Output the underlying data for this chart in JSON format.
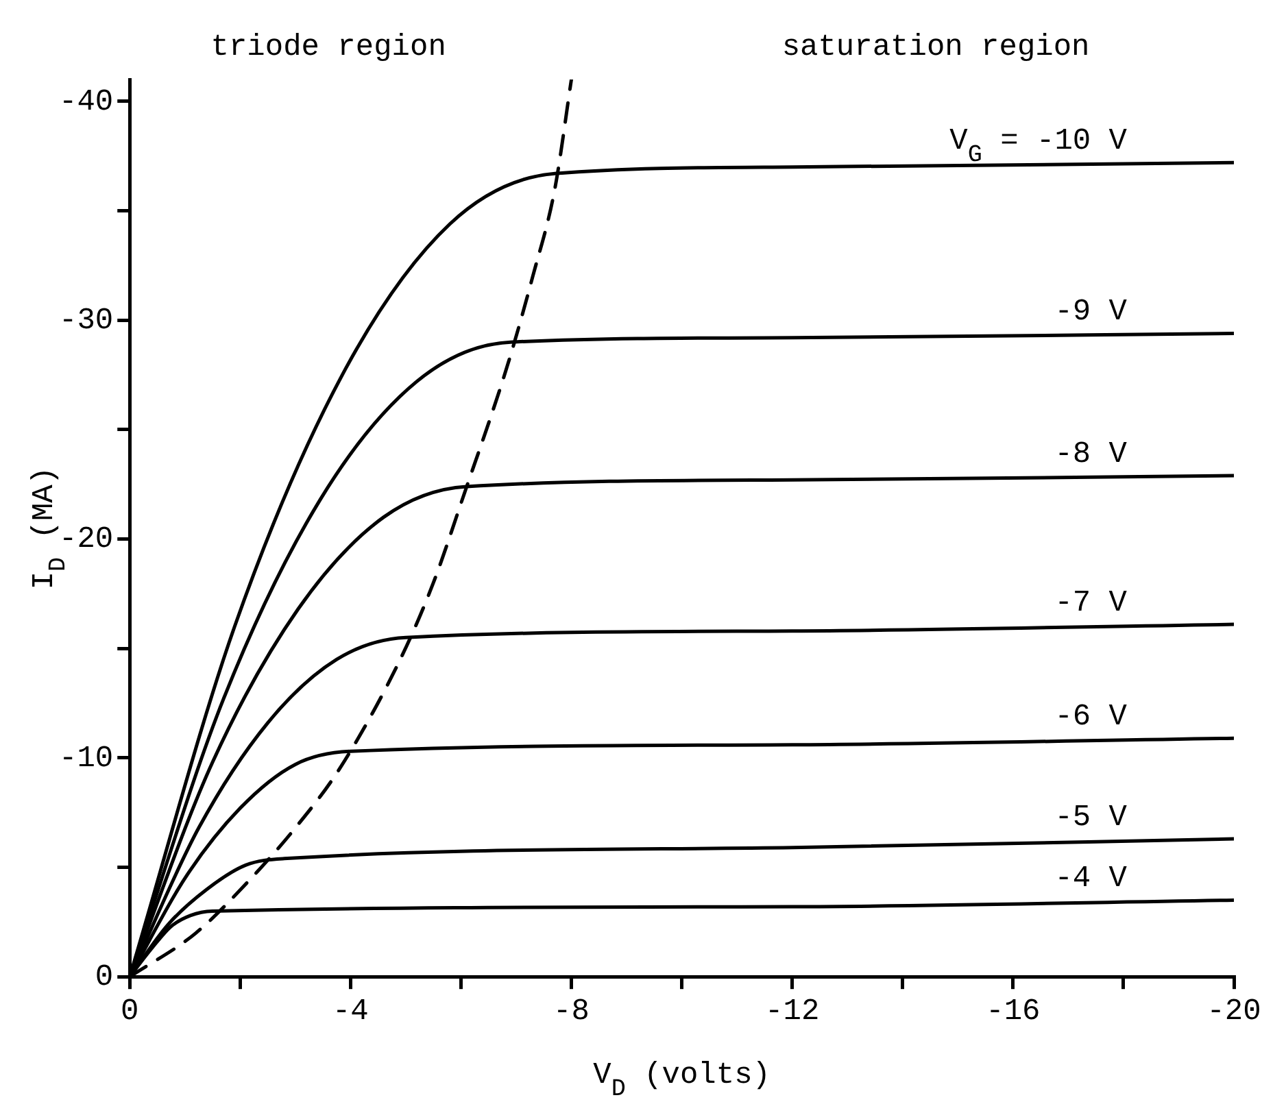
{
  "chart_data": {
    "type": "line",
    "xlabel": "V$_{D}$ (volts)",
    "ylabel": "I$_{D}$ (MA)",
    "annotations": [
      "triode region",
      "saturation region"
    ],
    "xlim": [
      0,
      -20
    ],
    "ylim": [
      0,
      -41
    ],
    "xticks": [
      0,
      {
        "value": -2,
        "label": null
      },
      -4,
      {
        "value": -6,
        "label": null
      },
      -8,
      {
        "value": -10,
        "label": null
      },
      -12,
      {
        "value": -14,
        "label": null
      },
      -16,
      {
        "value": -18,
        "label": null
      },
      -20
    ],
    "yticks": [
      0,
      {
        "value": -5,
        "label": null
      },
      -10,
      {
        "value": -15,
        "label": null
      },
      -20,
      {
        "value": -25,
        "label": null
      },
      -30,
      {
        "value": -35,
        "label": null
      },
      -40
    ],
    "grid": false,
    "legend": false,
    "marker": "none",
    "line_style": "solid",
    "series": [
      {
        "name": "V$_{G}$ = -10 V",
        "color": "#000000",
        "x": [
          0,
          -1.9,
          -3.85,
          -5.8,
          -7.7,
          -12,
          -20
        ],
        "values": [
          0,
          -16,
          -27.5,
          -34.4,
          -36.7,
          -37,
          -37.2
        ]
      },
      {
        "name": "-9 V",
        "color": "#000000",
        "x": [
          0,
          -1.7,
          -3.45,
          -5.2,
          -6.9,
          -12,
          -20
        ],
        "values": [
          0,
          -12.7,
          -21.8,
          -27.2,
          -29,
          -29.2,
          -29.4
        ]
      },
      {
        "name": "-8 V",
        "color": "#000000",
        "x": [
          0,
          -1.5,
          -3.05,
          -4.6,
          -6.1,
          -12,
          -20
        ],
        "values": [
          0,
          -9.8,
          -16.8,
          -21,
          -22.4,
          -22.7,
          -22.9
        ]
      },
      {
        "name": "-7 V",
        "color": "#000000",
        "x": [
          0,
          -1.25,
          -2.5,
          -3.75,
          -5,
          -12,
          -20
        ],
        "values": [
          0,
          -6.8,
          -11.6,
          -14.5,
          -15.5,
          -15.8,
          -16.1
        ]
      },
      {
        "name": "-6 V",
        "color": "#000000",
        "x": [
          0,
          -1,
          -2,
          -3,
          -4,
          -12,
          -20
        ],
        "values": [
          0,
          -4.5,
          -7.7,
          -9.7,
          -10.3,
          -10.6,
          -10.9
        ]
      },
      {
        "name": "-5 V",
        "color": "#000000",
        "x": [
          0,
          -0.7,
          -1.4,
          -2.1,
          -2.8,
          -12,
          -20
        ],
        "values": [
          0,
          -2.4,
          -4,
          -5.1,
          -5.4,
          -5.9,
          -6.3
        ]
      },
      {
        "name": "-4 V",
        "color": "#000000",
        "x": [
          0,
          -0.4,
          -0.75,
          -1.1,
          -1.5,
          -12,
          -20
        ],
        "values": [
          0,
          -1.3,
          -2.3,
          -2.8,
          -3,
          -3.2,
          -3.5
        ]
      },
      {
        "color": "#000000",
        "line_style": "dashed",
        "x": [
          0,
          -1.2,
          -2.2,
          -3,
          -3.8,
          -4.9,
          -5.5,
          -6.05,
          -6.85,
          -7.3,
          -7.7,
          -8
        ],
        "values": [
          0,
          -2,
          -4.5,
          -6.8,
          -9.5,
          -14.5,
          -18,
          -22,
          -28,
          -32,
          -36,
          -41
        ]
      }
    ]
  }
}
